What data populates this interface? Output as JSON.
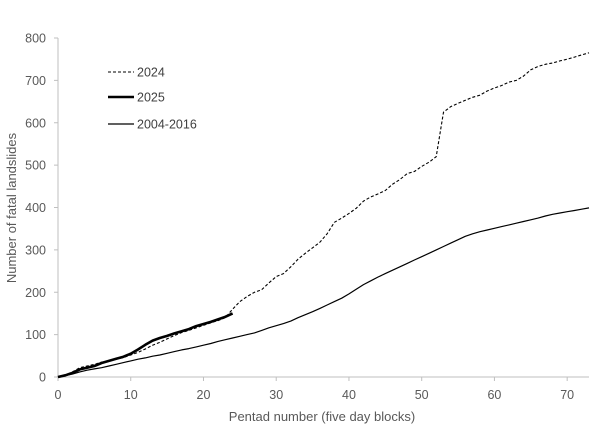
{
  "chart_data": {
    "type": "line",
    "title": "",
    "xlabel": "Pentad number (five day blocks)",
    "ylabel": "Number of fatal landslides",
    "xlim": [
      0,
      73
    ],
    "ylim": [
      0,
      800
    ],
    "xticks": [
      0,
      10,
      20,
      30,
      40,
      50,
      60,
      70
    ],
    "yticks": [
      0,
      100,
      200,
      300,
      400,
      500,
      600,
      700,
      800
    ],
    "grid": false,
    "legend_position": "top-left",
    "series": [
      {
        "name": "2024",
        "style": "dashed",
        "color": "#000000",
        "x": [
          0,
          1,
          2,
          3,
          4,
          5,
          6,
          7,
          8,
          9,
          10,
          11,
          12,
          13,
          14,
          15,
          16,
          17,
          18,
          19,
          20,
          21,
          22,
          23,
          24,
          25,
          26,
          27,
          28,
          29,
          30,
          31,
          32,
          33,
          34,
          35,
          36,
          37,
          38,
          39,
          40,
          41,
          42,
          43,
          44,
          45,
          46,
          47,
          48,
          49,
          50,
          51,
          52,
          53,
          54,
          55,
          56,
          57,
          58,
          59,
          60,
          61,
          62,
          63,
          64,
          65,
          66,
          67,
          68,
          69,
          70,
          71,
          72,
          73
        ],
        "y": [
          0,
          5,
          12,
          22,
          26,
          30,
          35,
          38,
          42,
          46,
          52,
          58,
          66,
          75,
          82,
          90,
          98,
          105,
          110,
          116,
          122,
          128,
          133,
          140,
          160,
          178,
          190,
          200,
          206,
          222,
          237,
          244,
          260,
          278,
          292,
          305,
          318,
          338,
          365,
          375,
          386,
          398,
          415,
          425,
          432,
          440,
          455,
          466,
          480,
          485,
          497,
          507,
          520,
          625,
          638,
          646,
          653,
          660,
          665,
          675,
          682,
          688,
          696,
          700,
          710,
          725,
          733,
          738,
          741,
          746,
          750,
          755,
          760,
          765
        ]
      },
      {
        "name": "2025",
        "style": "solid-bold",
        "color": "#000000",
        "x": [
          0,
          1,
          2,
          3,
          4,
          5,
          6,
          7,
          8,
          9,
          10,
          11,
          12,
          13,
          14,
          15,
          16,
          17,
          18,
          19,
          20,
          21,
          22,
          23,
          24
        ],
        "y": [
          0,
          4,
          10,
          18,
          22,
          26,
          33,
          38,
          43,
          48,
          55,
          65,
          76,
          86,
          92,
          97,
          103,
          108,
          113,
          120,
          125,
          130,
          136,
          142,
          150
        ]
      },
      {
        "name": "2004-2016",
        "style": "solid",
        "color": "#000000",
        "x": [
          0,
          1,
          2,
          3,
          4,
          5,
          6,
          7,
          8,
          9,
          10,
          11,
          12,
          13,
          14,
          15,
          16,
          17,
          18,
          19,
          20,
          21,
          22,
          23,
          24,
          25,
          26,
          27,
          28,
          29,
          30,
          31,
          32,
          33,
          34,
          35,
          36,
          37,
          38,
          39,
          40,
          41,
          42,
          43,
          44,
          45,
          46,
          47,
          48,
          49,
          50,
          51,
          52,
          53,
          54,
          55,
          56,
          57,
          58,
          59,
          60,
          61,
          62,
          63,
          64,
          65,
          66,
          67,
          68,
          69,
          70,
          71,
          72,
          73
        ],
        "y": [
          0,
          3,
          7,
          12,
          16,
          19,
          22,
          26,
          30,
          34,
          38,
          42,
          45,
          49,
          52,
          56,
          60,
          64,
          67,
          71,
          75,
          79,
          84,
          88,
          92,
          96,
          100,
          104,
          110,
          116,
          121,
          126,
          132,
          140,
          147,
          154,
          162,
          170,
          178,
          186,
          196,
          207,
          218,
          227,
          236,
          244,
          252,
          260,
          268,
          276,
          284,
          292,
          300,
          308,
          316,
          324,
          332,
          338,
          343,
          347,
          351,
          355,
          359,
          363,
          367,
          371,
          375,
          380,
          384,
          387,
          390,
          393,
          396,
          399
        ]
      }
    ]
  }
}
